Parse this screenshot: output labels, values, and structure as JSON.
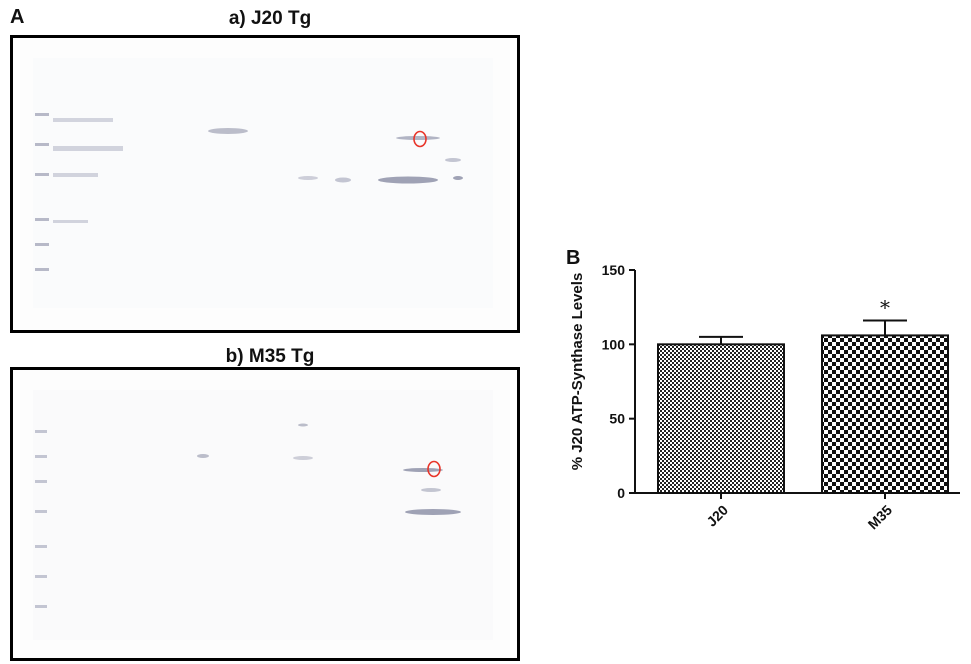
{
  "figure": {
    "panel_a_label": "A",
    "panel_b_label": "B",
    "gel_a_title": "a) J20 Tg",
    "gel_b_title": "b) M35 Tg"
  },
  "chart_data": {
    "type": "bar",
    "categories": [
      "J20",
      "M35"
    ],
    "values": [
      100,
      106
    ],
    "errors": [
      5,
      10
    ],
    "significance": [
      "",
      "*"
    ],
    "ylabel": "% J20 ATP-Synthase Levels",
    "xlabel": "",
    "ylim": [
      0,
      150
    ],
    "yticks": [
      0,
      50,
      100,
      150
    ],
    "bar_fill": [
      "fine-checker",
      "coarse-checker"
    ]
  },
  "colors": {
    "spot_circle": "#e8352a",
    "gel_background": "#fdfdfd",
    "band": "#8c8fa3"
  }
}
